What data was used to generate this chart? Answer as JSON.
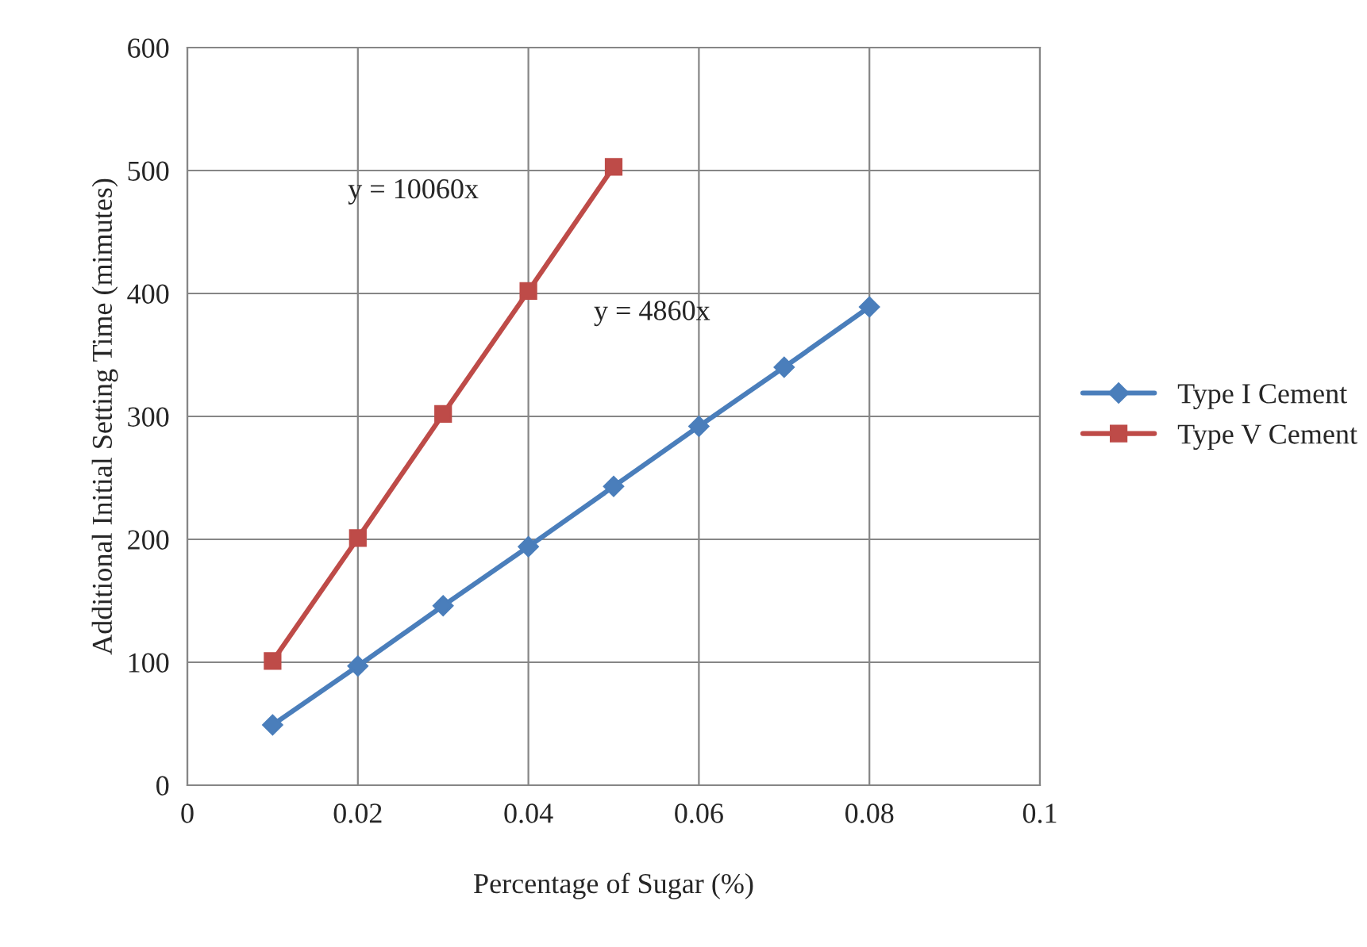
{
  "chart_data": {
    "type": "line",
    "xlabel": "Percentage of Sugar (%)",
    "ylabel": "Additional Initial Setting Time (mimutes)",
    "xlim": [
      0,
      0.1
    ],
    "xticks": [
      0,
      0.02,
      0.04,
      0.06,
      0.08,
      0.1
    ],
    "ylim": [
      0,
      600
    ],
    "yticks": [
      0,
      100,
      200,
      300,
      400,
      500,
      600
    ],
    "grid": true,
    "legend": "right",
    "line_style": "solid",
    "series": [
      {
        "name": "Type I Cement",
        "color": "#4a7ebb",
        "marker": "diamond",
        "x": [
          0.01,
          0.02,
          0.03,
          0.04,
          0.05,
          0.06,
          0.07,
          0.08
        ],
        "values": [
          49,
          97,
          146,
          194,
          243,
          292,
          340,
          389
        ]
      },
      {
        "name": "Type V Cement",
        "color": "#be4b48",
        "marker": "square",
        "x": [
          0.01,
          0.02,
          0.03,
          0.04,
          0.05
        ],
        "values": [
          101,
          201,
          302,
          402,
          503
        ]
      }
    ],
    "annotations": [
      "y = 10060x",
      "y = 4860x"
    ]
  }
}
